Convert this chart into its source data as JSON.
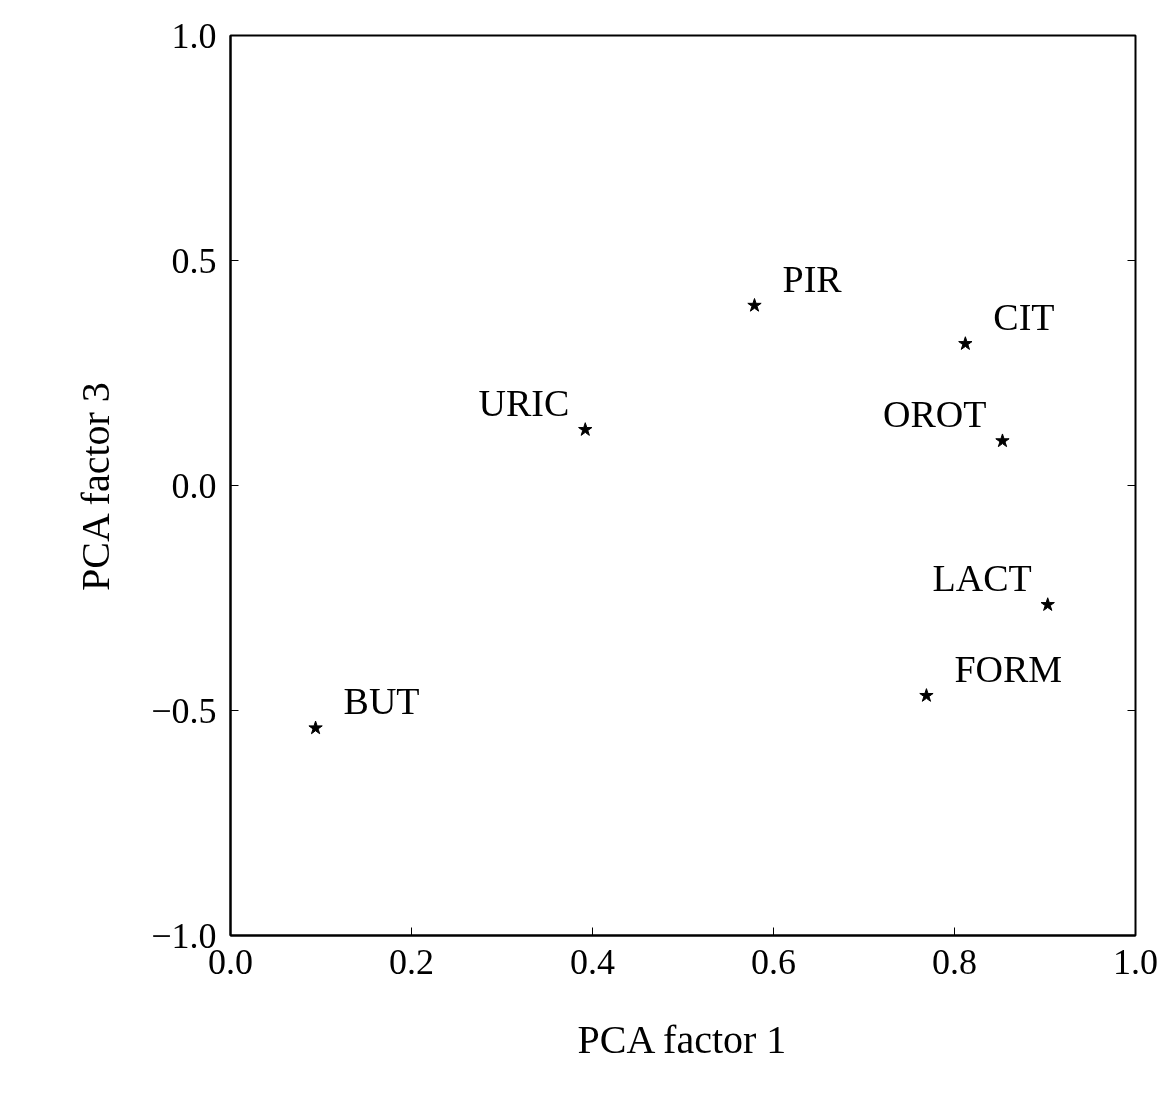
{
  "chart_data": {
    "type": "scatter",
    "xlabel": "PCA factor 1",
    "ylabel": "PCA factor 3",
    "x": [
      0.579,
      0.812,
      0.392,
      0.853,
      0.903,
      0.769,
      0.094
    ],
    "values": [
      0.4,
      0.315,
      0.124,
      0.099,
      -0.265,
      -0.467,
      -0.539
    ],
    "color": "#000000",
    "marker": "star",
    "grid": false,
    "xlim": [
      0.0,
      1.0
    ],
    "ylim": [
      -1.0,
      1.0
    ],
    "xticks": [
      {
        "value": 0,
        "label": "0.0"
      },
      0.2,
      0.4,
      0.6,
      0.8,
      {
        "value": 1,
        "label": "1.0"
      }
    ],
    "yticks": [
      {
        "value": -1,
        "label": "−1.0"
      },
      {
        "value": -0.5,
        "label": "−0.5"
      },
      {
        "value": 0,
        "label": "0.0"
      },
      0.5,
      {
        "value": 1,
        "label": "1.0"
      }
    ],
    "annotations": [
      {
        "text": "PIR",
        "x": 0.579,
        "y": 0.4
      },
      {
        "text": "CIT",
        "x": 0.812,
        "y": 0.315
      },
      {
        "text": "URIC",
        "x": 0.392,
        "y": 0.124
      },
      {
        "text": "OROT",
        "x": 0.853,
        "y": 0.099
      },
      {
        "text": "LACT",
        "x": 0.903,
        "y": -0.265
      },
      {
        "text": "FORM",
        "x": 0.769,
        "y": -0.467
      },
      {
        "text": "BUT",
        "x": 0.094,
        "y": -0.539
      }
    ]
  }
}
